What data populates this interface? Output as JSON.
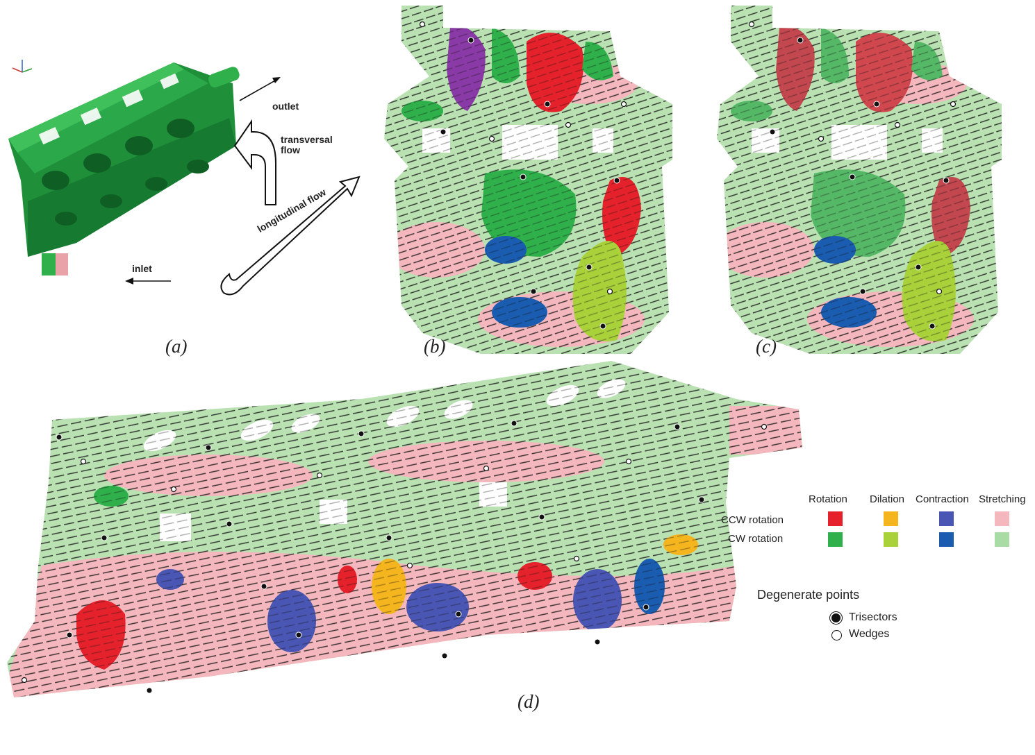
{
  "panel_a": {
    "outlet": "outlet",
    "transversal_flow": [
      "transversal",
      "flow"
    ],
    "longitudinal_flow": "longitudinal flow",
    "inlet": "inlet"
  },
  "captions": {
    "a": "(a)",
    "b": "(b)",
    "c": "(c)",
    "d": "(d)"
  },
  "legend": {
    "headers": {
      "rotation": "Rotation",
      "dilation": "Dilation",
      "contraction": "Contraction",
      "stretching": "Stretching"
    },
    "rows": {
      "ccw": "CCW rotation",
      "cw": "CW rotation"
    },
    "colors": {
      "ccw_rotation": "#e5222b",
      "ccw_dilation": "#f5b51e",
      "ccw_contraction": "#4a56b3",
      "ccw_stretching": "#f3b7bd",
      "cw_rotation": "#2fb04b",
      "cw_dilation": "#a9d13a",
      "cw_contraction": "#1a5cb0",
      "cw_stretching": "#a9dca4"
    },
    "degenerate_title": "Degenerate points",
    "trisectors": "Trisectors",
    "wedges": "Wedges"
  },
  "icons": {
    "axis_triad": "axis-triad-icon",
    "trisector": "trisector-marker-icon",
    "wedge": "wedge-marker-icon"
  }
}
